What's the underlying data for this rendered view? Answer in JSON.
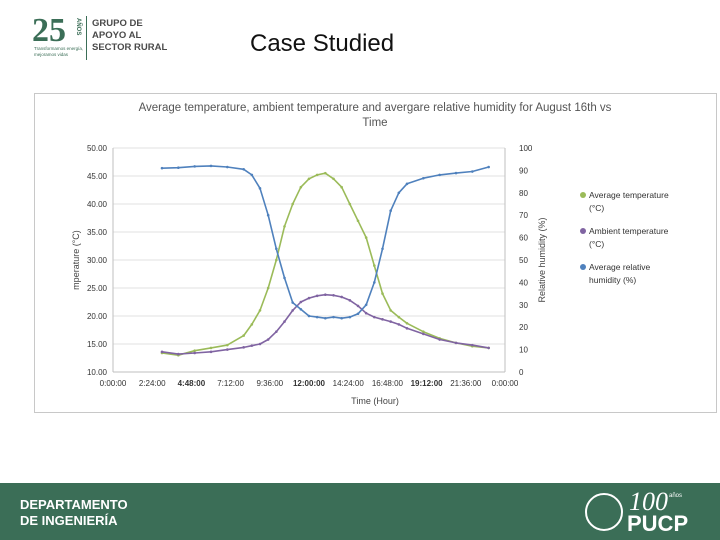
{
  "header": {
    "logo": {
      "number": "25",
      "anos": "AÑOS",
      "tagline": "Transformamos energía, mejoramos vidas",
      "lines": [
        "GRUPO DE",
        "APOYO AL",
        "SECTOR RURAL"
      ]
    },
    "title": "Case Studied"
  },
  "chart_data": {
    "type": "line",
    "title": "Average temperature, ambient temperature and avergare relative humidity for August 16th vs Time",
    "xlabel": "Time (Hour)",
    "ylabel": "Temperature (°C)",
    "ylabel_display": "mperature (°C)",
    "y2label": "Relative humidity (%)",
    "ylim": [
      10,
      50
    ],
    "y2lim": [
      0,
      100
    ],
    "xlim": [
      0,
      24
    ],
    "x_tick_labels": [
      "0:00:00",
      "2:24:00",
      "4:48:00",
      "7:12:00",
      "9:36:00",
      "12:00:00",
      "14:24:00",
      "16:48:00",
      "19:12:00",
      "21:36:00",
      "0:00:00"
    ],
    "x_tick_bold": [
      false,
      false,
      true,
      false,
      false,
      true,
      false,
      false,
      true,
      false,
      false
    ],
    "y_tick_labels": [
      "10.00",
      "15.00",
      "20.00",
      "25.00",
      "30.00",
      "35.00",
      "40.00",
      "45.00",
      "50.00"
    ],
    "y2_tick_labels": [
      "0",
      "10",
      "20",
      "30",
      "40",
      "50",
      "60",
      "70",
      "80",
      "90",
      "100"
    ],
    "legend_position": "right",
    "series": [
      {
        "name": "Average temperature (°C)",
        "legend_lines": [
          "Average temperature",
          "(°C)"
        ],
        "axis": "left",
        "color": "#9bbb59",
        "x": [
          3.0,
          4.0,
          5.0,
          6.0,
          7.0,
          8.0,
          8.5,
          9.0,
          9.5,
          10.0,
          10.5,
          11.0,
          11.5,
          12.0,
          12.5,
          13.0,
          13.5,
          14.0,
          14.5,
          15.0,
          15.5,
          16.0,
          16.5,
          17.0,
          17.5,
          18.0,
          19.0,
          20.0,
          21.0,
          22.0,
          23.0
        ],
        "values": [
          13.4,
          13.0,
          13.8,
          14.3,
          14.8,
          16.5,
          18.5,
          21.0,
          25.0,
          30.0,
          36.0,
          40.0,
          43.0,
          44.5,
          45.2,
          45.5,
          44.5,
          43.0,
          40.0,
          37.0,
          34.0,
          29.0,
          24.0,
          21.0,
          19.8,
          18.7,
          17.2,
          16.0,
          15.2,
          14.6,
          14.3
        ]
      },
      {
        "name": "Ambient temperature (°C)",
        "legend_lines": [
          "Ambient temperature",
          "(°C)"
        ],
        "axis": "left",
        "color": "#8064a2",
        "x": [
          3.0,
          4.0,
          5.0,
          6.0,
          7.0,
          8.0,
          8.5,
          9.0,
          9.5,
          10.0,
          10.5,
          11.0,
          11.5,
          12.0,
          12.5,
          13.0,
          13.5,
          14.0,
          14.5,
          15.0,
          15.5,
          16.0,
          16.5,
          17.0,
          17.5,
          18.0,
          19.0,
          20.0,
          21.0,
          22.0,
          23.0
        ],
        "values": [
          13.6,
          13.2,
          13.4,
          13.6,
          14.0,
          14.4,
          14.7,
          15.0,
          15.8,
          17.2,
          19.0,
          21.0,
          22.5,
          23.2,
          23.6,
          23.8,
          23.7,
          23.4,
          22.8,
          21.8,
          20.5,
          19.8,
          19.4,
          19.0,
          18.5,
          17.8,
          16.8,
          15.8,
          15.2,
          14.8,
          14.3
        ]
      },
      {
        "name": "Average relative humidity (%)",
        "legend_lines": [
          "Average relative",
          "humidity (%)"
        ],
        "axis": "right",
        "color": "#4f81bd",
        "x": [
          3.0,
          4.0,
          5.0,
          6.0,
          7.0,
          8.0,
          8.5,
          9.0,
          9.5,
          10.0,
          10.5,
          11.0,
          11.5,
          12.0,
          12.5,
          13.0,
          13.5,
          14.0,
          14.5,
          15.0,
          15.5,
          16.0,
          16.5,
          17.0,
          17.5,
          18.0,
          19.0,
          20.0,
          21.0,
          22.0,
          23.0
        ],
        "values": [
          91.0,
          91.2,
          91.8,
          92.0,
          91.5,
          90.5,
          88.0,
          82.0,
          70.0,
          55.0,
          42.0,
          31.0,
          28.0,
          25.0,
          24.5,
          24.0,
          24.5,
          24.0,
          24.5,
          26.0,
          30.0,
          40.0,
          55.0,
          72.0,
          80.0,
          84.0,
          86.5,
          88.0,
          88.8,
          89.5,
          91.5
        ]
      }
    ]
  },
  "footer": {
    "department_lines": [
      "DEPARTAMENTO",
      "DE INGENIERÍA"
    ],
    "centenary": "100",
    "centenary_anos": "años",
    "university": "PUCP"
  }
}
